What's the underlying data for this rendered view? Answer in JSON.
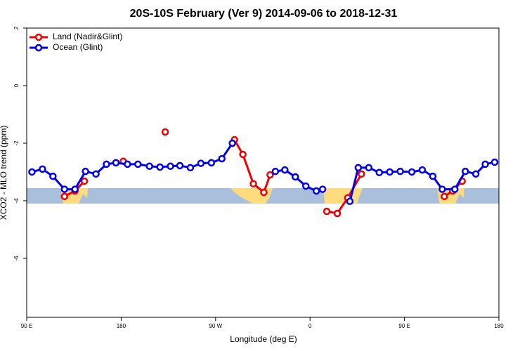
{
  "chart_data": {
    "type": "line",
    "title": "20S-10S February (Ver 9)   2014-09-06 to 2018-12-31",
    "x_label": "Longitude (deg E)",
    "y_label": "XCO2 - MLO trend (ppm)",
    "xlim": [
      90,
      540
    ],
    "ylim": [
      -8.05,
      2
    ],
    "xticks": [
      {
        "value": 90,
        "label": "90 E"
      },
      {
        "value": 180,
        "label": "180"
      },
      {
        "value": 270,
        "label": "90 W"
      },
      {
        "value": 360,
        "label": "0"
      },
      {
        "value": 450,
        "label": "90 E"
      },
      {
        "value": 540,
        "label": "180"
      }
    ],
    "yticks": [
      -6,
      -4,
      -2,
      0,
      2
    ],
    "legend": "top-left",
    "series": [
      {
        "name": "Land (Nadir&Glint)",
        "color": "#ee0000",
        "x": [
          126,
          136,
          145,
          null,
          182,
          null,
          222,
          null,
          288,
          296,
          306,
          316,
          322,
          null,
          376,
          386,
          396,
          409,
          null,
          488,
          496,
          505
        ],
        "values": [
          -3.85,
          -3.66,
          -3.32,
          null,
          -2.63,
          null,
          -1.61,
          null,
          -1.88,
          -2.39,
          -3.41,
          -3.71,
          -3.1,
          null,
          -4.37,
          -4.44,
          -3.9,
          -3.07,
          null,
          -3.85,
          -3.66,
          -3.32
        ]
      },
      {
        "name": "Ocean (Glint)",
        "color": "#0000ee",
        "x": [
          95,
          105,
          115,
          126,
          136,
          146,
          156,
          166,
          175,
          186,
          196,
          207,
          217,
          227,
          236,
          246,
          256,
          266,
          276,
          286,
          305,
          null,
          327,
          336,
          346,
          356,
          366,
          372,
          null,
          398,
          406,
          416,
          426,
          436,
          446,
          457,
          467,
          477,
          486,
          498,
          508,
          518,
          527,
          536
        ],
        "values": [
          -3.0,
          -2.9,
          -3.15,
          -3.6,
          -3.6,
          -2.98,
          -3.07,
          -2.73,
          -2.68,
          -2.73,
          -2.73,
          -2.8,
          -2.83,
          -2.8,
          -2.78,
          -2.85,
          -2.7,
          -2.68,
          -2.54,
          -2.0,
          null,
          null,
          -2.98,
          -2.93,
          -3.17,
          -3.49,
          -3.66,
          -3.6,
          null,
          -4.02,
          -2.85,
          -2.85,
          -3.02,
          -3.0,
          -2.98,
          -3.0,
          -2.93,
          -3.15,
          -3.6,
          -3.6,
          -2.98,
          -3.07,
          -2.73,
          -2.66
        ]
      }
    ]
  }
}
